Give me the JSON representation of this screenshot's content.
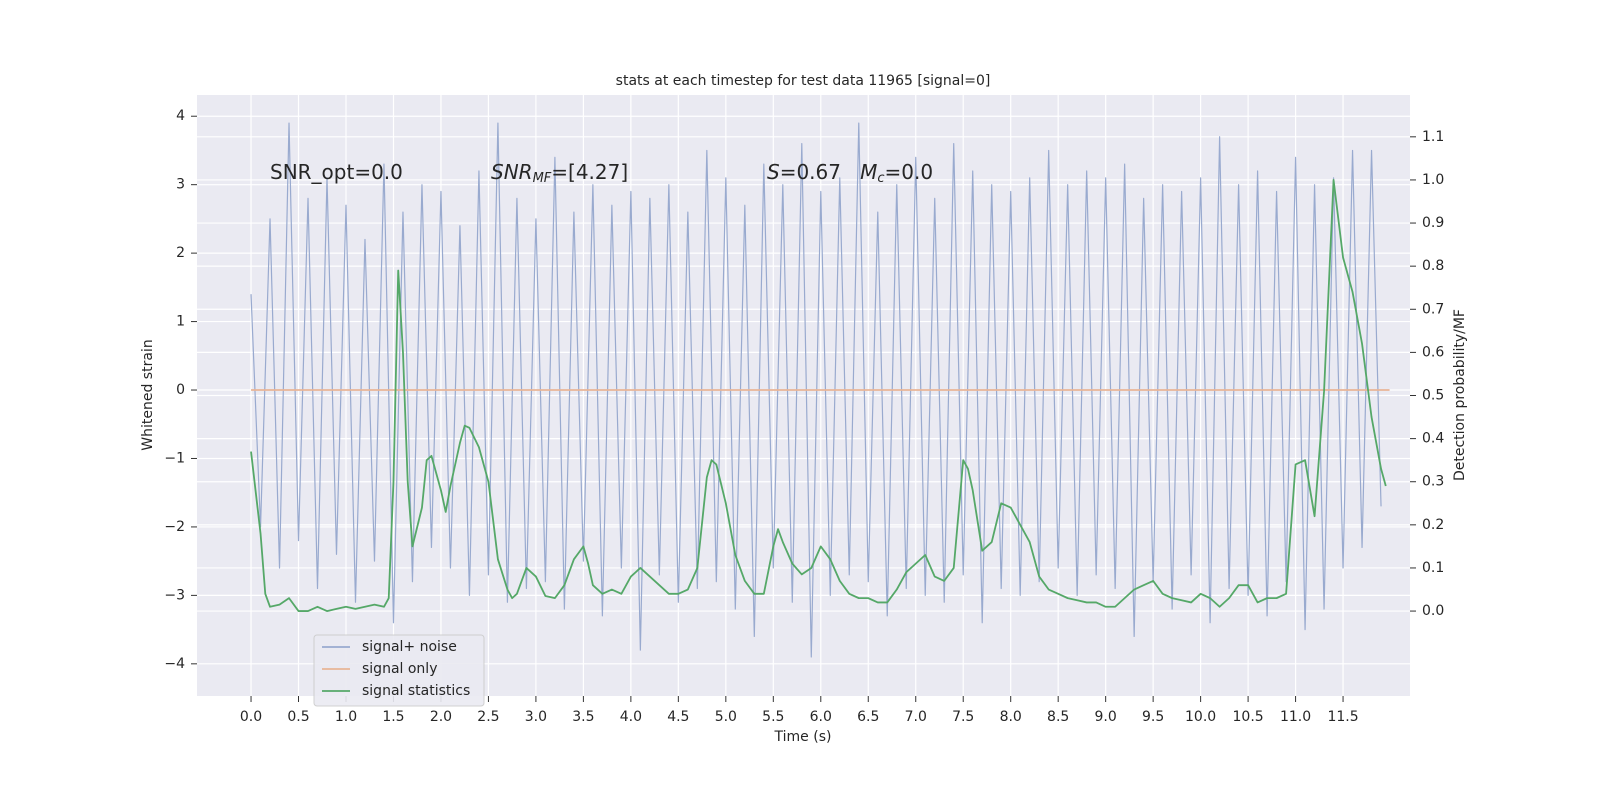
{
  "chart_data": {
    "type": "line",
    "title": "stats at each timestep for test data 11965 [signal=0]",
    "xlabel": "Time (s)",
    "ylabel": "Whitened strain",
    "y2label": "Detection probability/MF",
    "annotations": [
      {
        "text": "SNR_opt=0.0"
      },
      {
        "base": "SNR",
        "sub": "M",
        "base2": "F",
        "rest": "=[4.27]"
      },
      {
        "base": "S",
        "rest": "=0.67   ",
        "base2": "M",
        "sub": "c",
        "rest2": "=0.0"
      }
    ],
    "xlim": [
      -0.569,
      12.205
    ],
    "ylim": [
      -4.47,
      4.31
    ],
    "y2lim": [
      -0.197,
      1.197
    ],
    "xticks": [
      {
        "value": 0,
        "label": "0.0"
      },
      {
        "value": 0.5,
        "label": "0.5"
      },
      {
        "value": 1,
        "label": "1.0"
      },
      {
        "value": 1.5,
        "label": "1.5"
      },
      {
        "value": 2,
        "label": "2.0"
      },
      {
        "value": 2.5,
        "label": "2.5"
      },
      {
        "value": 3,
        "label": "3.0"
      },
      {
        "value": 3.5,
        "label": "3.5"
      },
      {
        "value": 4,
        "label": "4.0"
      },
      {
        "value": 4.5,
        "label": "4.5"
      },
      {
        "value": 5,
        "label": "5.0"
      },
      {
        "value": 5.5,
        "label": "5.5"
      },
      {
        "value": 6,
        "label": "6.0"
      },
      {
        "value": 6.5,
        "label": "6.5"
      },
      {
        "value": 7,
        "label": "7.0"
      },
      {
        "value": 7.5,
        "label": "7.5"
      },
      {
        "value": 8,
        "label": "8.0"
      },
      {
        "value": 8.5,
        "label": "8.5"
      },
      {
        "value": 9,
        "label": "9.0"
      },
      {
        "value": 9.5,
        "label": "9.5"
      },
      {
        "value": 10,
        "label": "10.0"
      },
      {
        "value": 10.5,
        "label": "10.5"
      },
      {
        "value": 11,
        "label": "11.0"
      },
      {
        "value": 11.5,
        "label": "11.5"
      }
    ],
    "yticks": [
      {
        "value": -4,
        "label": "−4"
      },
      {
        "value": -3,
        "label": "−3"
      },
      {
        "value": -2,
        "label": "−2"
      },
      {
        "value": -1,
        "label": "−1"
      },
      0,
      1,
      2,
      3,
      4
    ],
    "y2ticks": [
      {
        "value": 0,
        "label": "0.0"
      },
      {
        "value": 0.1,
        "label": "0.1"
      },
      {
        "value": 0.2,
        "label": "0.2"
      },
      {
        "value": 0.3,
        "label": "0.3"
      },
      {
        "value": 0.4,
        "label": "0.4"
      },
      {
        "value": 0.5,
        "label": "0.5"
      },
      {
        "value": 0.6,
        "label": "0.6"
      },
      {
        "value": 0.7,
        "label": "0.7"
      },
      {
        "value": 0.8,
        "label": "0.8"
      },
      {
        "value": 0.9,
        "label": "0.9"
      },
      {
        "value": 1,
        "label": "1.0"
      },
      {
        "value": 1.1,
        "label": "1.1"
      }
    ],
    "grid": true,
    "legend": "lower left",
    "series": [
      {
        "name": "signal+ noise",
        "color": "#99aacf",
        "x": [
          0,
          0.1,
          0.2,
          0.3,
          0.4,
          0.5,
          0.6,
          0.7,
          0.8,
          0.9,
          1,
          1.1,
          1.2,
          1.3,
          1.4,
          1.5,
          1.6,
          1.7,
          1.8,
          1.9,
          2,
          2.1,
          2.2,
          2.3,
          2.4,
          2.5,
          2.6,
          2.7,
          2.8,
          2.9,
          3,
          3.1,
          3.2,
          3.3,
          3.4,
          3.5,
          3.6,
          3.7,
          3.8,
          3.9,
          4,
          4.1,
          4.2,
          4.3,
          4.4,
          4.5,
          4.6,
          4.7,
          4.8,
          4.9,
          5,
          5.1,
          5.2,
          5.3,
          5.4,
          5.5,
          5.6,
          5.7,
          5.8,
          5.9,
          6,
          6.1,
          6.2,
          6.3,
          6.4,
          6.5,
          6.6,
          6.7,
          6.8,
          6.9,
          7,
          7.1,
          7.2,
          7.3,
          7.4,
          7.5,
          7.6,
          7.7,
          7.8,
          7.9,
          8,
          8.1,
          8.2,
          8.3,
          8.4,
          8.5,
          8.6,
          8.7,
          8.8,
          8.9,
          9,
          9.1,
          9.2,
          9.3,
          9.4,
          9.5,
          9.6,
          9.7,
          9.8,
          9.9,
          10,
          10.1,
          10.2,
          10.3,
          10.4,
          10.5,
          10.6,
          10.7,
          10.8,
          10.9,
          11,
          11.1,
          11.2,
          11.3,
          11.4,
          11.5,
          11.6,
          11.7,
          11.8,
          11.9
        ],
        "values": [
          1.4,
          -2.0,
          2.5,
          -2.6,
          3.9,
          -2.2,
          2.8,
          -2.9,
          3.1,
          -2.4,
          2.7,
          -3.1,
          2.2,
          -2.5,
          3.3,
          -3.4,
          2.6,
          -2.8,
          3.0,
          -2.3,
          2.9,
          -2.6,
          2.4,
          -3.0,
          3.2,
          -2.7,
          3.9,
          -3.1,
          2.8,
          -2.9,
          2.5,
          -2.8,
          3.4,
          -3.2,
          2.6,
          -2.5,
          3.0,
          -3.3,
          2.7,
          -2.6,
          2.9,
          -3.8,
          2.8,
          -2.7,
          3.0,
          -3.1,
          2.6,
          -2.9,
          3.5,
          -2.8,
          3.1,
          -3.2,
          2.7,
          -3.6,
          3.3,
          -2.6,
          3.0,
          -3.1,
          3.6,
          -3.9,
          2.9,
          -3.0,
          3.1,
          -2.7,
          3.9,
          -2.8,
          2.6,
          -3.3,
          3.0,
          -2.9,
          3.4,
          -3.0,
          2.8,
          -3.1,
          3.6,
          -2.7,
          3.2,
          -3.4,
          3.0,
          -2.9,
          2.9,
          -3.0,
          3.1,
          -2.8,
          3.5,
          -2.6,
          3.0,
          -3.0,
          3.2,
          -2.7,
          3.1,
          -2.9,
          3.3,
          -3.6,
          2.8,
          -2.8,
          3.0,
          -3.2,
          2.9,
          -2.7,
          3.1,
          -3.4,
          3.7,
          -2.9,
          3.0,
          -3.0,
          3.2,
          -3.3,
          2.9,
          -2.8,
          3.4,
          -3.5,
          3.0,
          -3.2,
          3.1,
          -2.6,
          3.5,
          -2.3,
          3.5,
          -1.7
        ]
      },
      {
        "name": "signal only",
        "color": "#e8b597",
        "x": [
          0,
          11.99
        ],
        "values": [
          0,
          0
        ]
      },
      {
        "name": "signal statistics",
        "color": "#55a868",
        "axis": "y2",
        "x": [
          0,
          0.1,
          0.15,
          0.2,
          0.3,
          0.4,
          0.5,
          0.6,
          0.7,
          0.8,
          0.9,
          1,
          1.1,
          1.2,
          1.3,
          1.4,
          1.45,
          1.5,
          1.55,
          1.6,
          1.65,
          1.7,
          1.8,
          1.85,
          1.9,
          2,
          2.05,
          2.1,
          2.2,
          2.25,
          2.3,
          2.4,
          2.5,
          2.6,
          2.7,
          2.75,
          2.8,
          2.9,
          3,
          3.1,
          3.2,
          3.3,
          3.4,
          3.5,
          3.55,
          3.6,
          3.7,
          3.8,
          3.9,
          4,
          4.1,
          4.2,
          4.3,
          4.4,
          4.5,
          4.6,
          4.7,
          4.8,
          4.85,
          4.9,
          5,
          5.1,
          5.2,
          5.3,
          5.4,
          5.5,
          5.55,
          5.6,
          5.7,
          5.8,
          5.9,
          6,
          6.1,
          6.2,
          6.3,
          6.4,
          6.5,
          6.6,
          6.7,
          6.8,
          6.9,
          7,
          7.1,
          7.2,
          7.3,
          7.4,
          7.5,
          7.55,
          7.6,
          7.7,
          7.8,
          7.9,
          8,
          8.1,
          8.2,
          8.3,
          8.4,
          8.5,
          8.6,
          8.7,
          8.8,
          8.9,
          9,
          9.1,
          9.2,
          9.3,
          9.4,
          9.5,
          9.6,
          9.7,
          9.8,
          9.9,
          10,
          10.1,
          10.2,
          10.3,
          10.4,
          10.5,
          10.6,
          10.7,
          10.8,
          10.9,
          11,
          11.1,
          11.2,
          11.3,
          11.4,
          11.5,
          11.6,
          11.7,
          11.8,
          11.9,
          11.95
        ],
        "values": [
          0.37,
          0.18,
          0.04,
          0.01,
          0.015,
          0.03,
          0.0,
          0.0,
          0.01,
          0.0,
          0.005,
          0.01,
          0.005,
          0.01,
          0.015,
          0.01,
          0.03,
          0.3,
          0.79,
          0.6,
          0.3,
          0.15,
          0.24,
          0.35,
          0.36,
          0.28,
          0.23,
          0.29,
          0.39,
          0.43,
          0.425,
          0.38,
          0.3,
          0.12,
          0.05,
          0.03,
          0.04,
          0.1,
          0.08,
          0.035,
          0.03,
          0.06,
          0.12,
          0.15,
          0.11,
          0.06,
          0.04,
          0.05,
          0.04,
          0.08,
          0.1,
          0.08,
          0.06,
          0.04,
          0.04,
          0.05,
          0.1,
          0.31,
          0.35,
          0.34,
          0.25,
          0.13,
          0.07,
          0.04,
          0.04,
          0.15,
          0.19,
          0.16,
          0.11,
          0.085,
          0.1,
          0.15,
          0.12,
          0.07,
          0.04,
          0.03,
          0.03,
          0.02,
          0.02,
          0.05,
          0.09,
          0.11,
          0.13,
          0.08,
          0.07,
          0.1,
          0.35,
          0.33,
          0.28,
          0.14,
          0.16,
          0.25,
          0.24,
          0.2,
          0.16,
          0.08,
          0.05,
          0.04,
          0.03,
          0.025,
          0.02,
          0.02,
          0.01,
          0.01,
          0.03,
          0.05,
          0.06,
          0.07,
          0.04,
          0.03,
          0.025,
          0.02,
          0.04,
          0.03,
          0.01,
          0.03,
          0.06,
          0.06,
          0.02,
          0.03,
          0.03,
          0.04,
          0.34,
          0.35,
          0.22,
          0.51,
          1.0,
          0.82,
          0.74,
          0.62,
          0.45,
          0.33,
          0.29
        ]
      }
    ]
  }
}
